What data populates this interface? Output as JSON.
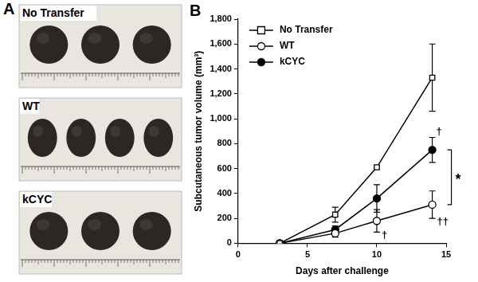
{
  "panel_a": {
    "label": "A",
    "images": [
      {
        "label": "No Transfer",
        "tumors": 3
      },
      {
        "label": "WT",
        "tumors": 4
      },
      {
        "label": "kCYC",
        "tumors": 3
      }
    ]
  },
  "chart_data": {
    "type": "line",
    "label": "B",
    "x_label": "Days after challenge",
    "y_label": "Subcutaneous tumor volume (mm³)",
    "x": [
      3,
      7,
      10,
      14
    ],
    "series": [
      {
        "name": "No Transfer",
        "color": "#000000",
        "marker": "square_open",
        "line_style": "solid",
        "values": [
          0,
          230,
          610,
          1330
        ],
        "errors": [
          0,
          60,
          15,
          270
        ]
      },
      {
        "name": "WT",
        "color": "#000000",
        "marker": "circle_open",
        "line_style": "solid",
        "values": [
          0,
          80,
          180,
          310
        ],
        "errors": [
          0,
          30,
          90,
          110
        ]
      },
      {
        "name": "kCYC",
        "color": "#000000",
        "marker": "circle_filled",
        "line_style": "solid",
        "values": [
          0,
          110,
          360,
          750
        ],
        "errors": [
          0,
          30,
          110,
          100
        ]
      }
    ],
    "annotations": [
      {
        "text": "†",
        "series": "kCYC",
        "x": 14
      },
      {
        "text": "††",
        "series": "WT",
        "x": 14
      },
      {
        "text": "†",
        "series": "WT",
        "x": 10
      },
      {
        "text": "*",
        "between": [
          "WT",
          "kCYC"
        ],
        "x": 14
      }
    ],
    "xlim": [
      0,
      15
    ],
    "xticks": [
      0,
      5,
      10,
      15
    ],
    "ylim": [
      0,
      1800
    ],
    "yticks": [
      0,
      200,
      400,
      600,
      800,
      1000,
      1200,
      1400,
      1600,
      1800
    ],
    "grid": false,
    "legend": "upper left"
  }
}
